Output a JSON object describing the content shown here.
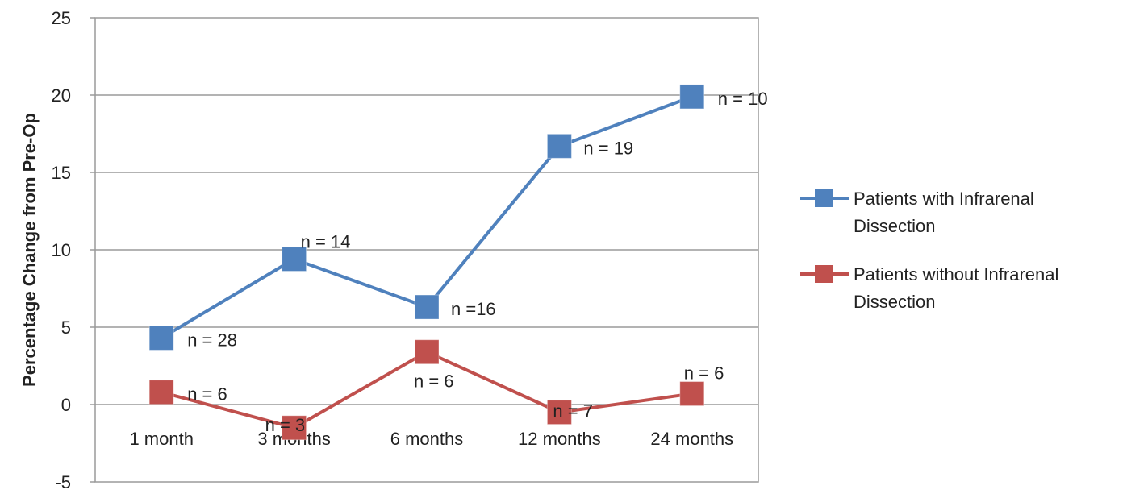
{
  "chart_data": {
    "type": "line",
    "title": "",
    "xlabel": "",
    "ylabel": "Percentage Change from Pre-Op",
    "categories": [
      "1 month",
      "3 months",
      "6 months",
      "12 months",
      "24 months"
    ],
    "ylim": [
      -5,
      25
    ],
    "yticks": [
      -5,
      0,
      5,
      10,
      15,
      20,
      25
    ],
    "grid": true,
    "legend_position": "right",
    "series": [
      {
        "name": "Patients with Infrarenal Dissection",
        "legend_lines": [
          "Patients with Infrarenal",
          "Dissection"
        ],
        "color": "#4f81bd",
        "values": [
          4.3,
          9.4,
          6.3,
          16.7,
          19.9
        ],
        "labels": [
          "n = 28",
          "n = 14",
          "n =16",
          "n = 19",
          "n = 10"
        ]
      },
      {
        "name": "Patients without Infrarenal Dissection",
        "legend_lines": [
          "Patients without Infrarenal",
          "Dissection"
        ],
        "color": "#c0504d",
        "values": [
          0.8,
          -1.5,
          3.4,
          -0.5,
          0.7
        ],
        "labels": [
          "n = 6",
          "n = 3",
          "n = 6",
          "n = 7",
          "n = 6"
        ]
      }
    ]
  }
}
